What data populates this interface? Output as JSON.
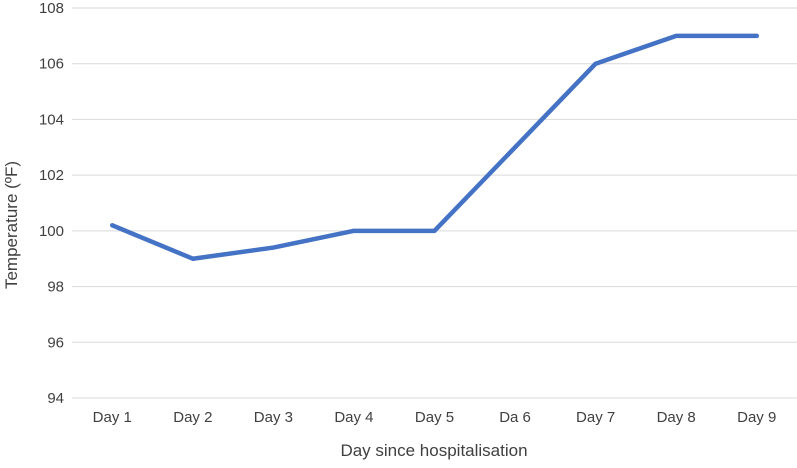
{
  "chart_data": {
    "type": "line",
    "title": "",
    "xlabel": "Day since hospitalisation",
    "ylabel": "Temperature (ºF)",
    "categories": [
      "Day 1",
      "Day 2",
      "Day 3",
      "Day 4",
      "Day 5",
      "Da 6",
      "Day 7",
      "Day 8",
      "Day 9"
    ],
    "series": [
      {
        "values": [
          100.2,
          99.0,
          99.4,
          100.0,
          100.0,
          103.0,
          106.0,
          107.0,
          107.0
        ]
      }
    ],
    "ylim": [
      94,
      108
    ],
    "yticks": [
      "94",
      "96",
      "98",
      "100",
      "102",
      "104",
      "106",
      "108"
    ],
    "grid": true,
    "legend": "none",
    "colors": {
      "line": "#4472c4",
      "grid": "#d9d9d9",
      "text": "#404040"
    }
  }
}
